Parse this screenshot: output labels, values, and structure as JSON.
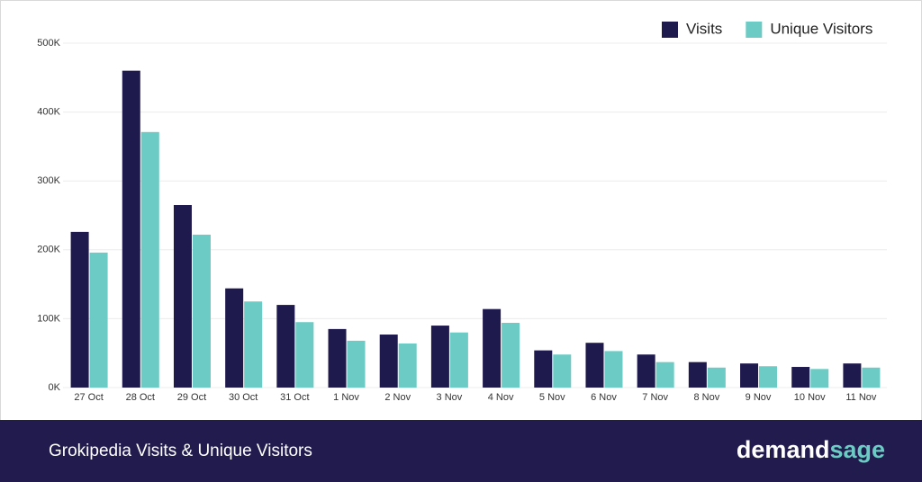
{
  "chart_data": {
    "type": "bar",
    "title": "Grokipedia Visits & Unique Visitors",
    "categories": [
      "27 Oct",
      "28 Oct",
      "29 Oct",
      "30 Oct",
      "31 Oct",
      "1 Nov",
      "2 Nov",
      "3 Nov",
      "4 Nov",
      "5 Nov",
      "6 Nov",
      "7 Nov",
      "8 Nov",
      "9 Nov",
      "10 Nov",
      "11 Nov"
    ],
    "series": [
      {
        "name": "Visits",
        "color": "#1f1a4d",
        "values": [
          226000,
          460000,
          265000,
          144000,
          120000,
          85000,
          77000,
          90000,
          114000,
          54000,
          65000,
          48000,
          37000,
          35000,
          30000,
          35000
        ]
      },
      {
        "name": "Unique Visitors",
        "color": "#6ccbc4",
        "values": [
          196000,
          371000,
          222000,
          125000,
          95000,
          68000,
          64000,
          80000,
          94000,
          48000,
          53000,
          37000,
          29000,
          31000,
          27000,
          29000
        ]
      }
    ],
    "ylim": [
      0,
      500000
    ],
    "yticks": [
      {
        "value": 0,
        "label": "0K"
      },
      {
        "value": 100000,
        "label": "100K"
      },
      {
        "value": 200000,
        "label": "200K"
      },
      {
        "value": 300000,
        "label": "300K"
      },
      {
        "value": 400000,
        "label": "400K"
      },
      {
        "value": 500000,
        "label": "500K"
      }
    ],
    "grid": true,
    "legend": "top-right"
  },
  "footer": {
    "brand": [
      "demand",
      "sage"
    ]
  }
}
